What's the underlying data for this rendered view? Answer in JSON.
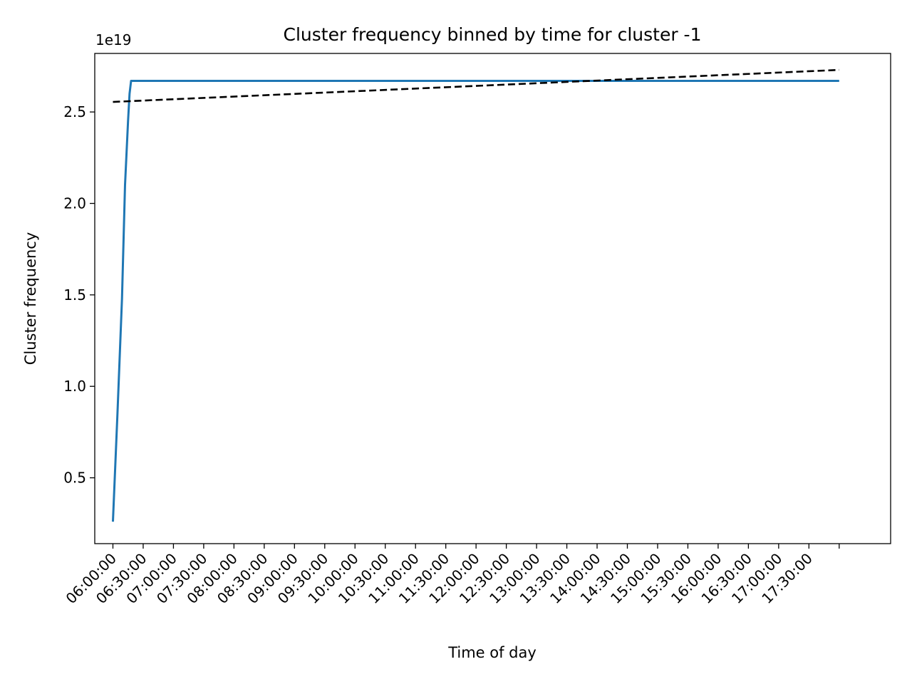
{
  "chart_data": {
    "type": "line",
    "title": "Cluster frequency binned by time for cluster -1",
    "xlabel": "Time of day",
    "ylabel": "Cluster frequency",
    "y_offset_label": "1e19",
    "y_scale": 1e+19,
    "grid": false,
    "legend": "none",
    "x_ticks": [
      "06:00:00",
      "06:30:00",
      "07:00:00",
      "07:30:00",
      "08:00:00",
      "08:30:00",
      "09:00:00",
      "09:30:00",
      "10:00:00",
      "10:30:00",
      "11:00:00",
      "11:30:00",
      "12:00:00",
      "12:30:00",
      "13:00:00",
      "13:30:00",
      "14:00:00",
      "14:30:00",
      "15:00:00",
      "15:30:00",
      "16:00:00",
      "16:30:00",
      "17:00:00",
      "17:30:00"
    ],
    "x_tick_count_with_unlabeled": 25,
    "xlim": [
      -0.6,
      25.7
    ],
    "ylim": [
      0.14,
      2.82
    ],
    "y_ticks": [
      0.5,
      1.0,
      1.5,
      2.0,
      2.5
    ],
    "y_tick_labels": [
      "0.5",
      "1.0",
      "1.5",
      "2.0",
      "2.5"
    ],
    "series": [
      {
        "kind": "solid",
        "color": "#1f77b4",
        "x": [
          0,
          0.15,
          0.3,
          0.4,
          0.5,
          0.55,
          0.6,
          0.65,
          24
        ],
        "y": [
          0.26,
          0.85,
          1.48,
          2.1,
          2.45,
          2.6,
          2.67,
          2.67,
          2.67
        ]
      },
      {
        "kind": "dashed",
        "color": "#000000",
        "x": [
          0,
          24
        ],
        "y": [
          2.555,
          2.73
        ]
      }
    ]
  }
}
